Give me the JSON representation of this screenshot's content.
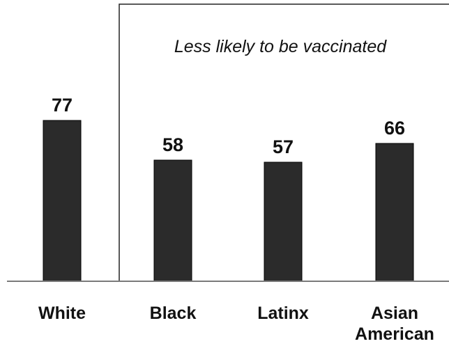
{
  "chart_data": {
    "type": "bar",
    "title": "",
    "xlabel": "",
    "ylabel": "",
    "categories": [
      [
        "White"
      ],
      [
        "Black"
      ],
      [
        "Latinx"
      ],
      [
        "Asian",
        "American"
      ]
    ],
    "values": [
      77,
      58,
      57,
      66
    ],
    "ylim": [
      0,
      100
    ],
    "grid": false,
    "legend": "none",
    "bar_color": "#2b2b2b",
    "annotation": {
      "text": "Less likely to be vaccinated",
      "groups": [
        "Black",
        "Latinx",
        "Asian American"
      ]
    }
  }
}
